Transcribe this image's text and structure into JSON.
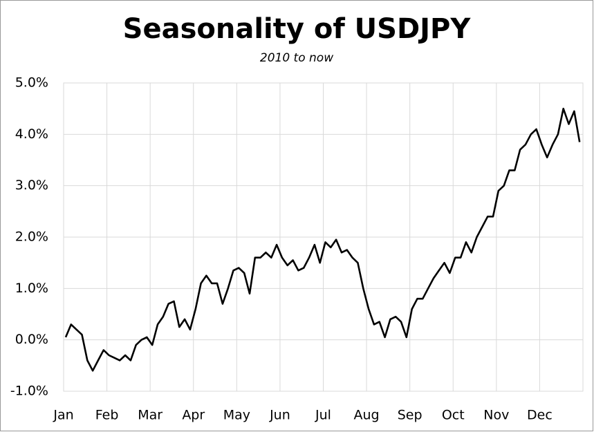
{
  "chart_data": {
    "type": "line",
    "title": "Seasonality of USDJPY",
    "subtitle": "2010 to now",
    "categories": [
      "Jan",
      null,
      null,
      null,
      null,
      null,
      null,
      null,
      "Feb",
      null,
      null,
      null,
      null,
      null,
      null,
      null,
      "Mar",
      null,
      null,
      null,
      null,
      null,
      null,
      null,
      "Apr",
      null,
      null,
      null,
      null,
      null,
      null,
      null,
      "May",
      null,
      null,
      null,
      null,
      null,
      null,
      null,
      "Jun",
      null,
      null,
      null,
      null,
      null,
      null,
      null,
      "Jul",
      null,
      null,
      null,
      null,
      null,
      null,
      null,
      "Aug",
      null,
      null,
      null,
      null,
      null,
      null,
      null,
      "Sep",
      null,
      null,
      null,
      null,
      null,
      null,
      null,
      "Oct",
      null,
      null,
      null,
      null,
      null,
      null,
      null,
      "Nov",
      null,
      null,
      null,
      null,
      null,
      null,
      null,
      "Dec",
      null,
      null,
      null,
      null,
      null,
      null,
      null
    ],
    "values": [
      0.05,
      0.3,
      0.2,
      0.1,
      -0.4,
      -0.6,
      -0.4,
      -0.2,
      -0.3,
      -0.35,
      -0.4,
      -0.3,
      -0.4,
      -0.1,
      0.0,
      0.05,
      -0.1,
      0.3,
      0.45,
      0.7,
      0.75,
      0.25,
      0.4,
      0.2,
      0.6,
      1.1,
      1.25,
      1.1,
      1.1,
      0.7,
      1.0,
      1.35,
      1.4,
      1.3,
      0.9,
      1.6,
      1.6,
      1.7,
      1.6,
      1.85,
      1.6,
      1.45,
      1.55,
      1.35,
      1.4,
      1.6,
      1.85,
      1.5,
      1.9,
      1.8,
      1.95,
      1.7,
      1.75,
      1.6,
      1.5,
      1.0,
      0.6,
      0.3,
      0.35,
      0.05,
      0.4,
      0.45,
      0.35,
      0.05,
      0.6,
      0.8,
      0.8,
      1.0,
      1.2,
      1.35,
      1.5,
      1.3,
      1.6,
      1.6,
      1.9,
      1.7,
      2.0,
      2.2,
      2.4,
      2.4,
      2.9,
      3.0,
      3.3,
      3.3,
      3.7,
      3.8,
      4.0,
      4.1,
      3.8,
      3.55,
      3.8,
      4.0,
      4.5,
      4.2,
      4.45,
      3.85
    ],
    "color": "#000000",
    "ylim": [
      -1,
      5
    ],
    "yticks": [
      {
        "value": -1,
        "label": "-1.0%"
      },
      {
        "value": 0,
        "label": "0.0%"
      },
      {
        "value": 1,
        "label": "1.0%"
      },
      {
        "value": 2,
        "label": "2.0%"
      },
      {
        "value": 3,
        "label": "3.0%"
      },
      {
        "value": 4,
        "label": "4.0%"
      },
      {
        "value": 5,
        "label": "5.0%"
      }
    ],
    "grid": true
  }
}
